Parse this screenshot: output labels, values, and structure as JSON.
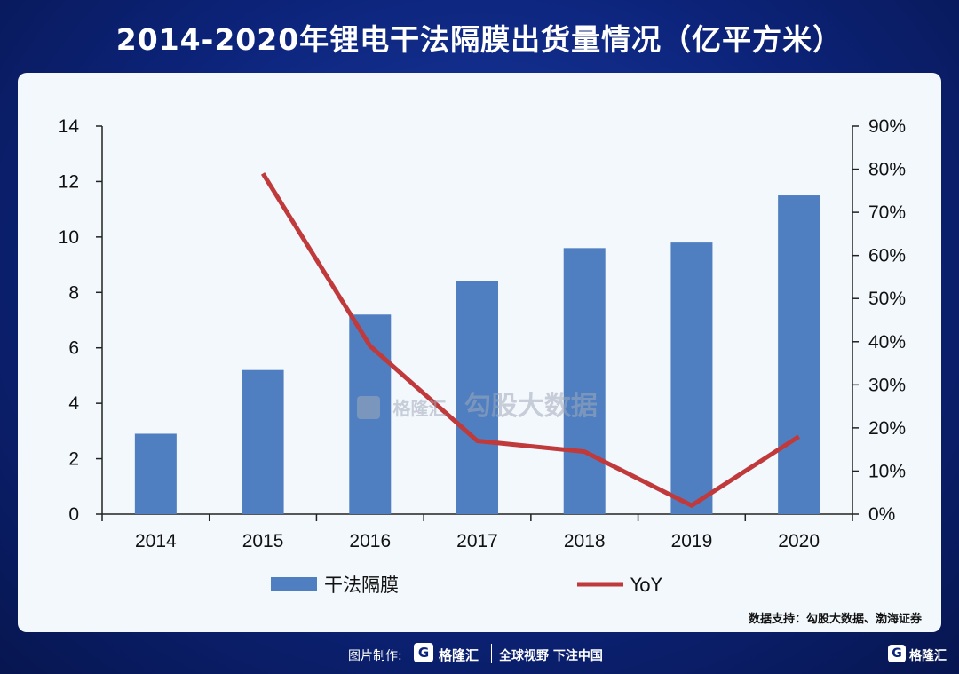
{
  "title": "2014-2020年锂电干法隔膜出货量情况（亿平方米）",
  "chart_data": {
    "type": "bar",
    "categories": [
      "2014",
      "2015",
      "2016",
      "2017",
      "2018",
      "2019",
      "2020"
    ],
    "series": [
      {
        "name": "干法隔膜",
        "type": "bar",
        "axis": "left",
        "values": [
          2.9,
          5.2,
          7.2,
          8.4,
          9.6,
          9.8,
          11.5
        ]
      },
      {
        "name": "YoY",
        "type": "line",
        "axis": "right",
        "values": [
          null,
          0.79,
          0.39,
          0.17,
          0.145,
          0.02,
          0.18
        ]
      }
    ],
    "y_left": {
      "ylim": [
        0,
        14
      ],
      "ticks": [
        "0",
        "2",
        "4",
        "6",
        "8",
        "10",
        "12",
        "14"
      ]
    },
    "y_right": {
      "ylim": [
        0,
        0.9
      ],
      "ticks": [
        "0%",
        "10%",
        "20%",
        "30%",
        "40%",
        "50%",
        "60%",
        "70%",
        "80%",
        "90%"
      ]
    },
    "legend_position": "bottom",
    "grid": false
  },
  "colors": {
    "bar": "#4f7fc0",
    "line": "#c0393b"
  },
  "source": "数据支持：勾股大数据、渤海证券",
  "watermark": {
    "brand": "格隆汇",
    "text": "勾股大数据"
  },
  "footer": {
    "credit": "图片制作:",
    "logo_letter": "G",
    "brand": "格隆汇",
    "slogan": "全球视野 下注中国",
    "brand_right": "格隆汇"
  }
}
